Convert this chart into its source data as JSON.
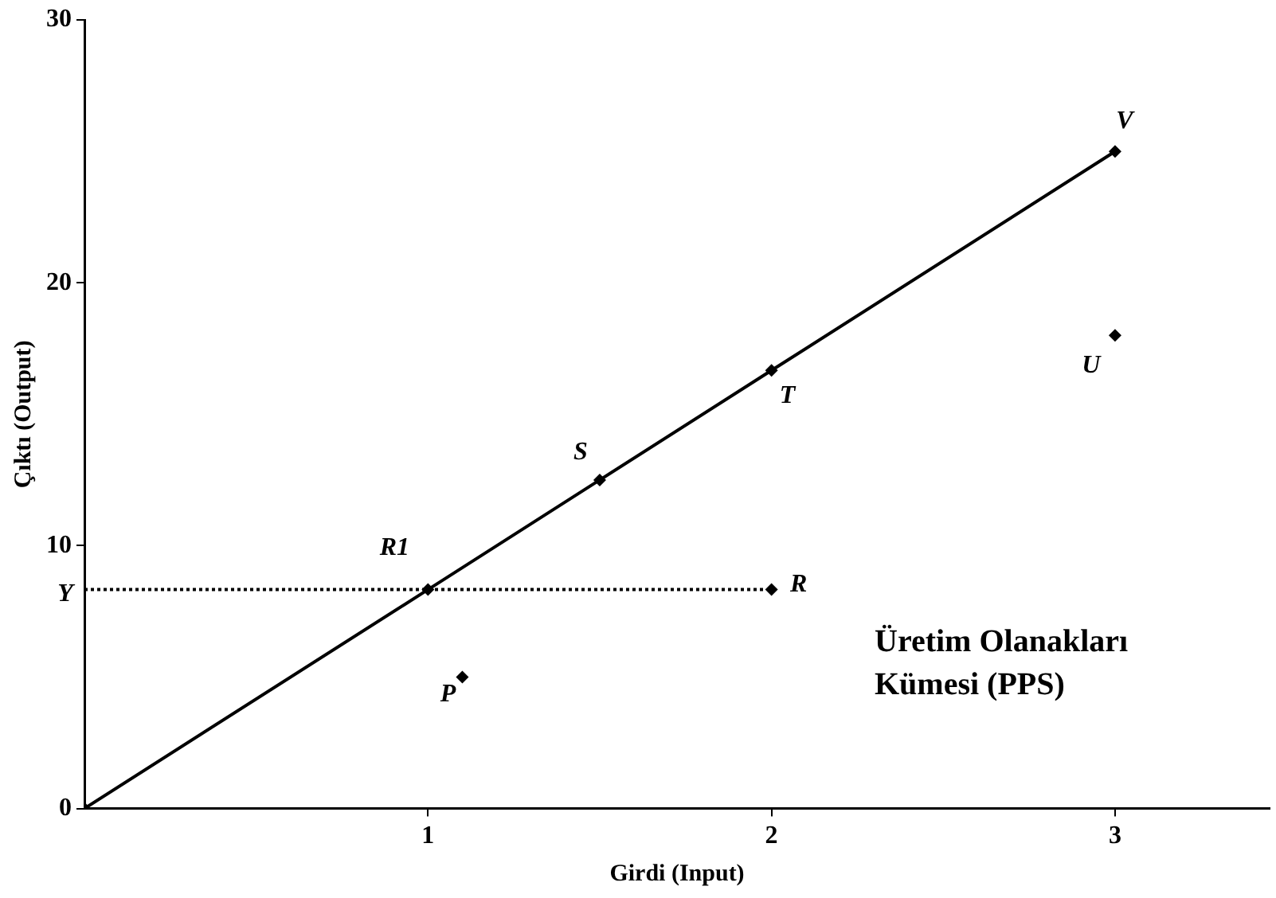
{
  "chart_data": {
    "type": "line",
    "xlabel": "Girdi (Input)",
    "ylabel": "Çıktı (Output)",
    "xlim": [
      0,
      3.45
    ],
    "xticks": [
      1,
      2,
      3
    ],
    "ylim": [
      0,
      30
    ],
    "yticks": [
      0,
      10,
      20,
      30
    ],
    "grid": false,
    "legend": false,
    "series": [
      {
        "type": "line",
        "color": "#000000",
        "marker": "diamond",
        "line_style": "solid",
        "x": [
          0,
          1,
          1.5,
          2,
          3
        ],
        "values": [
          0,
          8.33,
          12.5,
          16.67,
          25
        ]
      },
      {
        "type": "scatter",
        "color": "#000000",
        "marker": "diamond",
        "x": [
          1.1,
          2,
          3
        ],
        "values": [
          5,
          8.33,
          18
        ]
      }
    ],
    "ref_lines": [
      {
        "axis": "y",
        "value": 8.33,
        "label": "Y",
        "color": "#000000",
        "line_style": "dotted"
      }
    ],
    "annotations": [
      {
        "text": "R1",
        "x": 1,
        "y": 8.33
      },
      {
        "text": "S",
        "x": 1.5,
        "y": 12.5
      },
      {
        "text": "T",
        "x": 2,
        "y": 16.67
      },
      {
        "text": "V",
        "x": 3,
        "y": 25
      },
      {
        "text": "U",
        "x": 3,
        "y": 18
      },
      {
        "text": "R",
        "x": 2,
        "y": 8.33
      },
      {
        "text": "P",
        "x": 1.1,
        "y": 5
      },
      "Üretim Olanakları\nKümesi (PPS)"
    ]
  }
}
